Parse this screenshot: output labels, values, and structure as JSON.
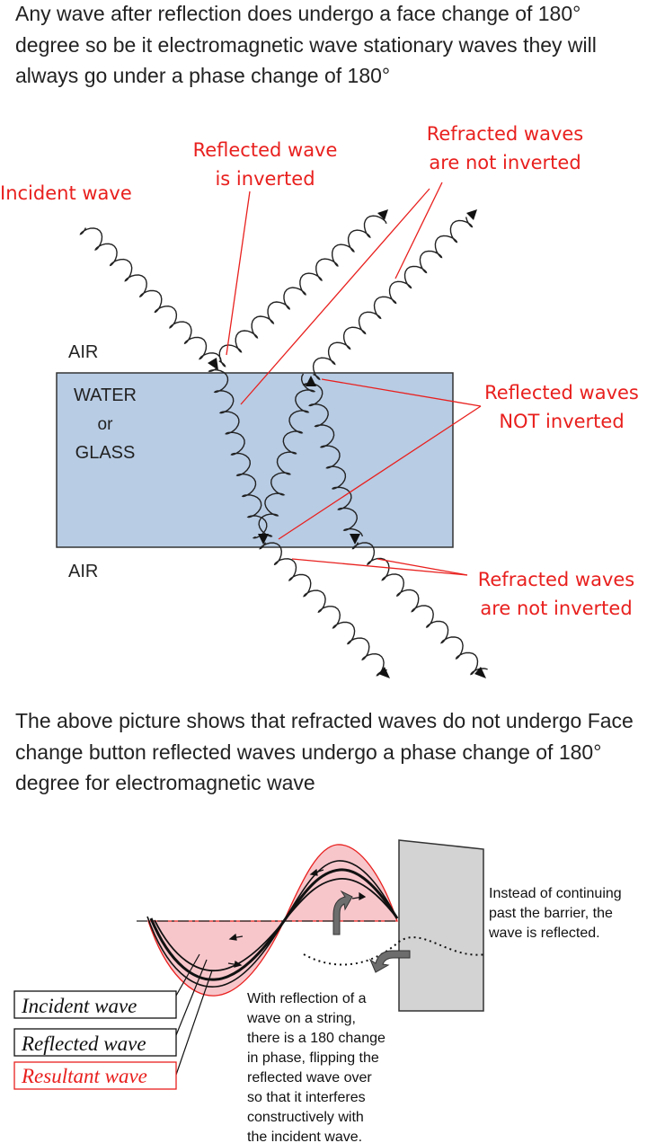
{
  "paragraphs": {
    "top": "Any wave after reflection does undergo a face change of 180° degree so be it electromagnetic wave stationary waves they will always go under a phase change of 180°",
    "middle": "The above picture shows that refracted waves do not undergo Face change button reflected waves undergo a phase change of 180° degree for electromagnetic wave"
  },
  "diagram_top": {
    "labels": {
      "incident": "Incident wave",
      "reflected_inverted_1": "Reflected wave",
      "reflected_inverted_2": "is inverted",
      "refracted_top_1": "Refracted waves",
      "refracted_top_2": "are not inverted",
      "air_top": "AIR",
      "medium_1": "WATER",
      "medium_2": "or",
      "medium_3": "GLASS",
      "reflected_not_1": "Reflected waves",
      "reflected_not_2": "NOT inverted",
      "air_bottom": "AIR",
      "refracted_bottom_1": "Refracted waves",
      "refracted_bottom_2": "are not inverted"
    },
    "colors": {
      "annotation": "#e8201e",
      "medium": "#b8cce4",
      "wave": "#222222"
    }
  },
  "diagram_bottom": {
    "legend": [
      "Incident wave",
      "Reflected wave",
      "Resultant wave"
    ],
    "note_right": [
      "Instead of continuing",
      "past the barrier, the",
      "wave is reflected."
    ],
    "note_bottom": [
      "With reflection of a",
      "wave on a string,",
      "there is a 180 change",
      "in phase, flipping the",
      "reflected wave over",
      "so that it interferes",
      "constructively with",
      "the incident wave."
    ],
    "colors": {
      "fill": "#f7c6cb",
      "barrier": "#d3d3d3",
      "arrow": "#6d6d6d"
    }
  }
}
